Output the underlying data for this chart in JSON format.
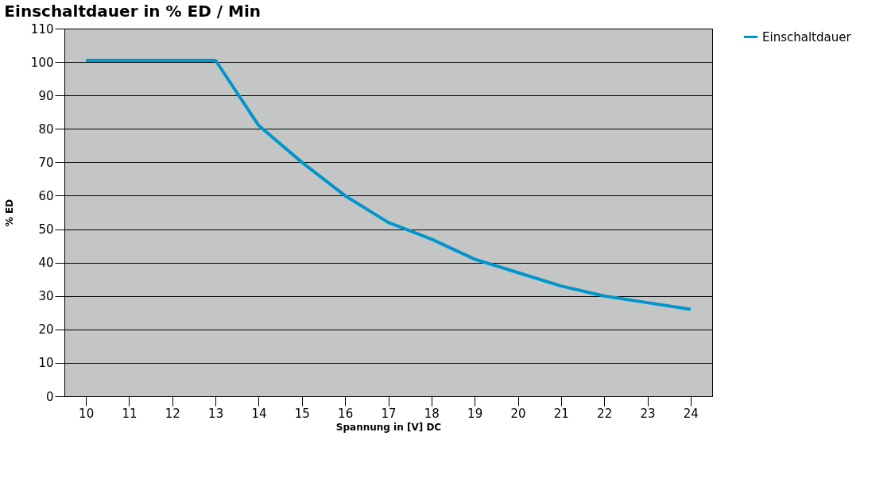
{
  "chart_data": {
    "type": "line",
    "title": "Einschaltdauer in % ED / Min",
    "xlabel": "Spannung in [V] DC",
    "ylabel": "% ED",
    "categories": [
      "10",
      "11",
      "12",
      "13",
      "14",
      "15",
      "16",
      "17",
      "18",
      "19",
      "20",
      "21",
      "22",
      "23",
      "24"
    ],
    "series": [
      {
        "name": "Einschaltdauer",
        "color": "#0096cc",
        "values": [
          100.5,
          100.5,
          100.5,
          100.5,
          81,
          70,
          60,
          52,
          47,
          41,
          37,
          33,
          30,
          28,
          26
        ]
      }
    ],
    "ylim": [
      0,
      110
    ],
    "yticks": [
      0,
      10,
      20,
      30,
      40,
      50,
      60,
      70,
      80,
      90,
      100,
      110
    ],
    "grid": "y",
    "legend": "right",
    "marker": "none",
    "line_style": "solid"
  }
}
